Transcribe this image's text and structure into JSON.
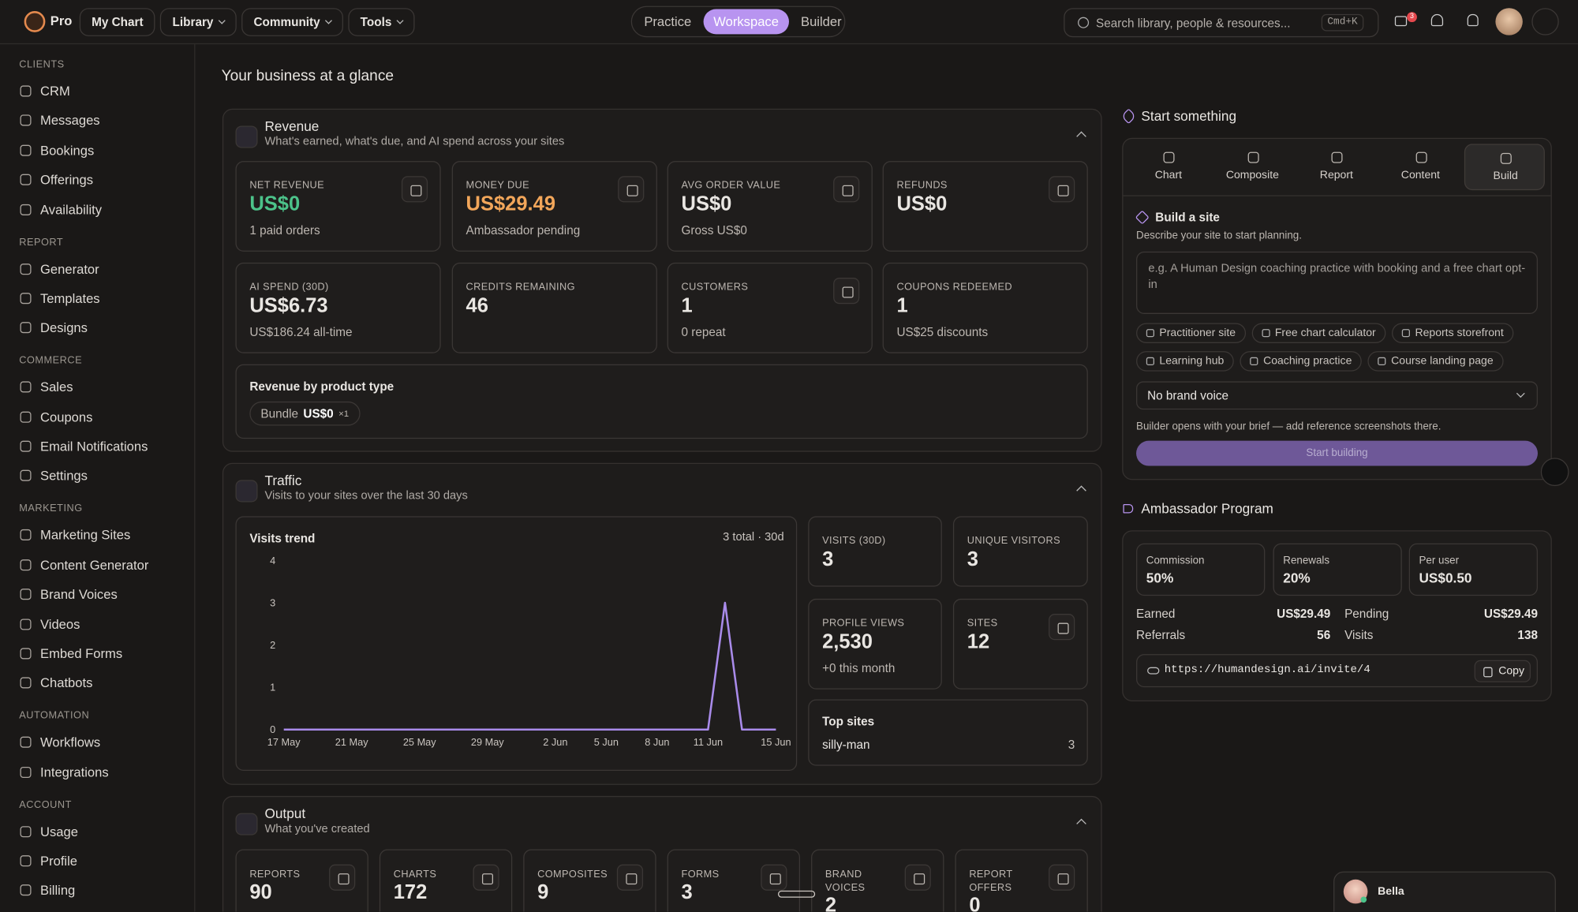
{
  "topbar": {
    "brand": "Pro",
    "menus": [
      "My Chart",
      "Library",
      "Community",
      "Tools"
    ],
    "modes": [
      "Practice",
      "Workspace",
      "Builder"
    ],
    "active_mode": 1,
    "search_placeholder": "Search library, people & resources...",
    "shortcut": "Cmd+K",
    "mail_badge": "3"
  },
  "sidebar": {
    "sections": [
      {
        "title": "CLIENTS",
        "items": [
          "CRM",
          "Messages",
          "Bookings",
          "Offerings",
          "Availability"
        ]
      },
      {
        "title": "REPORT",
        "items": [
          "Generator",
          "Templates",
          "Designs"
        ]
      },
      {
        "title": "COMMERCE",
        "items": [
          "Sales",
          "Coupons",
          "Email Notifications",
          "Settings"
        ]
      },
      {
        "title": "MARKETING",
        "items": [
          "Marketing Sites",
          "Content Generator",
          "Brand Voices",
          "Videos",
          "Embed Forms",
          "Chatbots"
        ]
      },
      {
        "title": "AUTOMATION",
        "items": [
          "Workflows",
          "Integrations"
        ]
      },
      {
        "title": "ACCOUNT",
        "items": [
          "Usage",
          "Profile",
          "Billing"
        ]
      }
    ]
  },
  "page_title": "Your business at a glance",
  "revenue": {
    "title": "Revenue",
    "subtitle": "What's earned, what's due, and AI spend across your sites",
    "cards": [
      {
        "label": "NET REVENUE",
        "value": "US$0",
        "note": "1 paid orders",
        "color": "#4cc38a",
        "icon": true
      },
      {
        "label": "MONEY DUE",
        "value": "US$29.49",
        "note": "Ambassador pending",
        "color": "#f2a65a",
        "icon": true
      },
      {
        "label": "AVG ORDER VALUE",
        "value": "US$0",
        "note": "Gross US$0",
        "icon": true
      },
      {
        "label": "REFUNDS",
        "value": "US$0",
        "icon": true
      },
      {
        "label": "AI SPEND (30D)",
        "value": "US$6.73",
        "note": "US$186.24 all-time"
      },
      {
        "label": "CREDITS REMAINING",
        "value": "46"
      },
      {
        "label": "CUSTOMERS",
        "value": "1",
        "note": "0 repeat",
        "icon": true
      },
      {
        "label": "COUPONS REDEEMED",
        "value": "1",
        "note": "US$25 discounts"
      }
    ],
    "product_type": {
      "title": "Revenue by product type",
      "chips": [
        {
          "name": "Bundle",
          "amount": "US$0",
          "count": "×1"
        }
      ]
    }
  },
  "traffic": {
    "title": "Traffic",
    "subtitle": "Visits to your sites over the last 30 days",
    "chart_data": {
      "type": "line",
      "title": "Visits trend",
      "summary": "3 total · 30d",
      "color": "#a98bea",
      "categories": [
        "17 May",
        null,
        null,
        null,
        "21 May",
        null,
        null,
        null,
        "25 May",
        null,
        null,
        null,
        "29 May",
        null,
        null,
        null,
        "2 Jun",
        null,
        null,
        "5 Jun",
        null,
        null,
        "8 Jun",
        null,
        null,
        "11 Jun",
        null,
        null,
        null,
        "15 Jun"
      ],
      "values": [
        0,
        0,
        0,
        0,
        0,
        0,
        0,
        0,
        0,
        0,
        0,
        0,
        0,
        0,
        0,
        0,
        0,
        0,
        0,
        0,
        0,
        0,
        0,
        0,
        0,
        0,
        3,
        0,
        0,
        0
      ],
      "ylim": [
        0,
        4
      ],
      "yticks": [
        0,
        1,
        2,
        3,
        4
      ]
    },
    "stats": [
      {
        "label": "VISITS (30D)",
        "value": "3"
      },
      {
        "label": "UNIQUE VISITORS",
        "value": "3"
      },
      {
        "label": "PROFILE VIEWS",
        "value": "2,530",
        "note": "+0 this month"
      },
      {
        "label": "SITES",
        "value": "12",
        "icon": true
      }
    ],
    "top_sites": {
      "title": "Top sites",
      "rows": [
        {
          "name": "silly-man",
          "count": "3"
        }
      ]
    }
  },
  "output": {
    "title": "Output",
    "subtitle": "What you've created",
    "cards": [
      {
        "label": "REPORTS",
        "value": "90"
      },
      {
        "label": "CHARTS",
        "value": "172"
      },
      {
        "label": "COMPOSITES",
        "value": "9"
      },
      {
        "label": "FORMS",
        "value": "3"
      },
      {
        "label": "BRAND VOICES",
        "value": "2"
      },
      {
        "label": "REPORT OFFERS",
        "value": "0"
      }
    ]
  },
  "start": {
    "title": "Start something",
    "tabs": [
      "Chart",
      "Composite",
      "Report",
      "Content",
      "Build"
    ],
    "active_tab": 4,
    "build": {
      "title": "Build a site",
      "description": "Describe your site to start planning.",
      "placeholder": "e.g. A Human Design coaching practice with booking and a free chart opt-in",
      "chips": [
        "Practitioner site",
        "Free chart calculator",
        "Reports storefront",
        "Learning hub",
        "Coaching practice",
        "Course landing page"
      ],
      "brand_voice": "No brand voice",
      "note": "Builder opens with your brief — add reference screenshots there.",
      "button": "Start building"
    }
  },
  "ambassador": {
    "title": "Ambassador Program",
    "boxes": [
      {
        "label": "Commission",
        "value": "50%"
      },
      {
        "label": "Renewals",
        "value": "20%"
      },
      {
        "label": "Per user",
        "value": "US$0.50"
      }
    ],
    "rows": [
      {
        "label": "Earned",
        "value": "US$29.49"
      },
      {
        "label": "Pending",
        "value": "US$29.49"
      },
      {
        "label": "Referrals",
        "value": "56"
      },
      {
        "label": "Visits",
        "value": "138"
      }
    ],
    "link": "https://humandesign.ai/invite/4",
    "copy": "Copy"
  },
  "chat": {
    "name": "Bella"
  }
}
